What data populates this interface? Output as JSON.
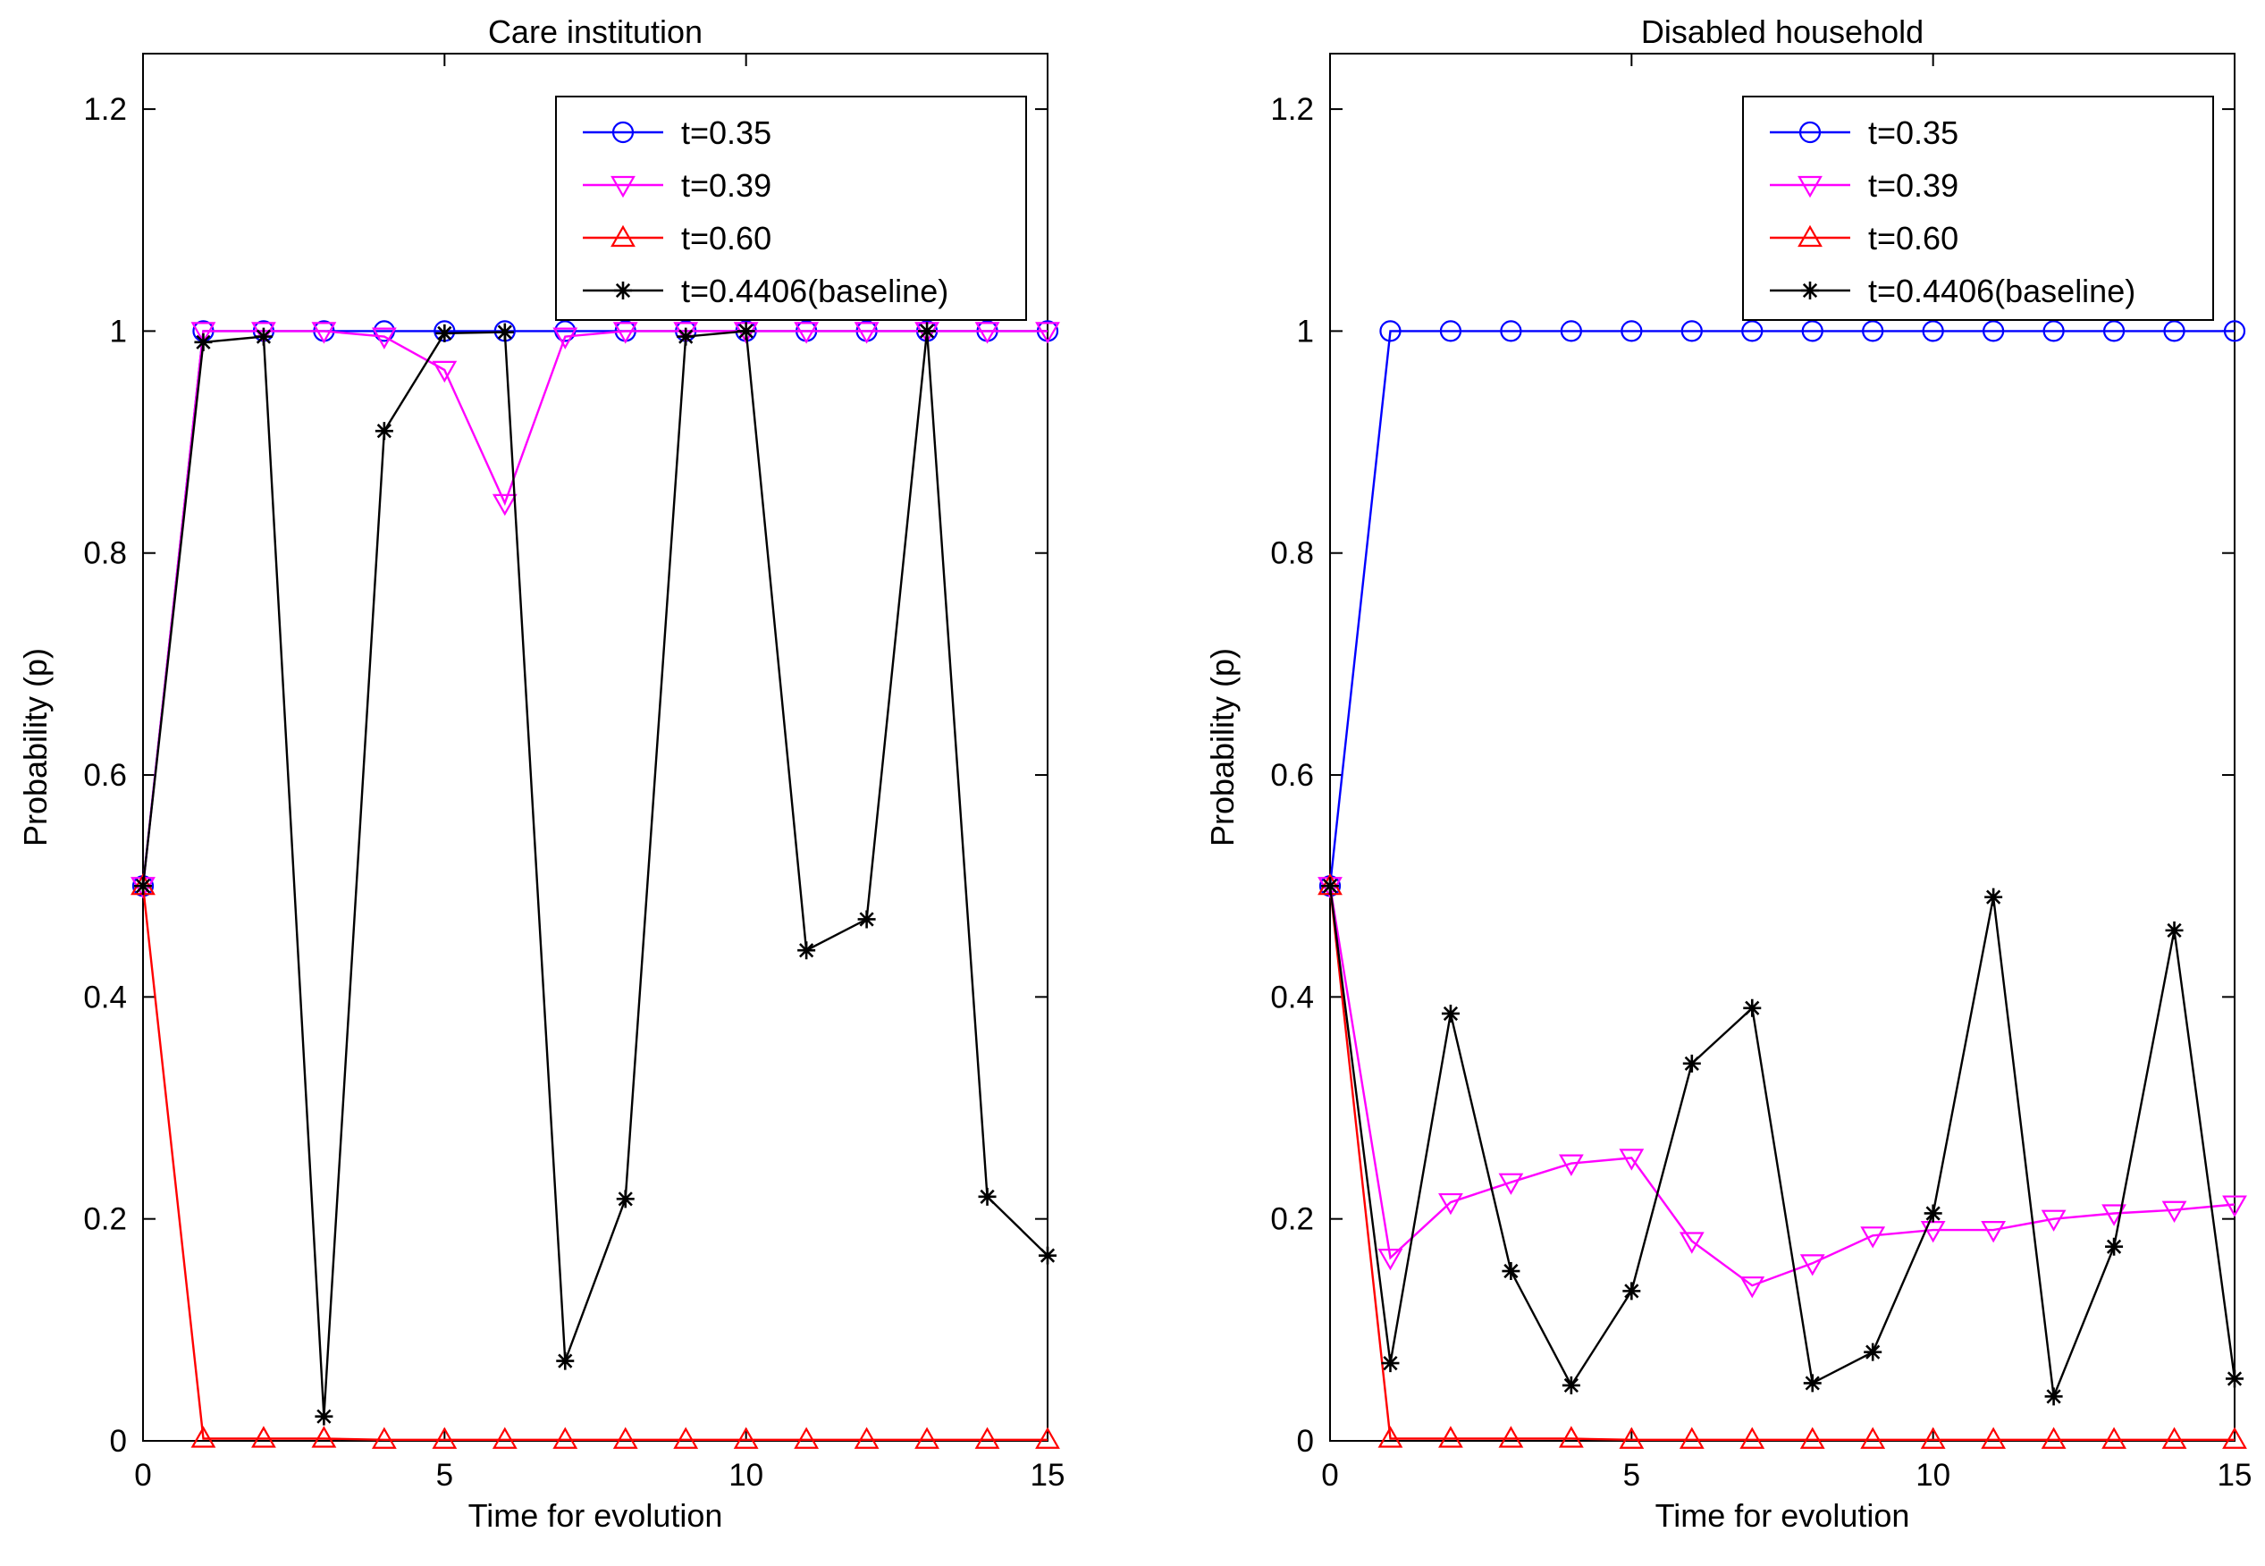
{
  "chart_data": [
    {
      "type": "line",
      "title": "Care institution",
      "xlabel": "Time for evolution",
      "ylabel": "Probability (p)",
      "xlim": [
        0,
        15
      ],
      "ylim": [
        0,
        1.25
      ],
      "xticks": [
        "0",
        "5",
        "10",
        "15"
      ],
      "yticks": [
        "0",
        "0.2",
        "0.4",
        "0.6",
        "0.8",
        "1",
        "1.2"
      ],
      "legend_position": "top-right",
      "x": [
        0,
        1,
        2,
        3,
        4,
        5,
        6,
        7,
        8,
        9,
        10,
        11,
        12,
        13,
        14,
        15
      ],
      "series": [
        {
          "name": "t=0.35",
          "color": "#0000ff",
          "marker": "circle",
          "values": [
            0.5,
            1,
            1,
            1,
            1,
            1,
            1,
            1,
            1,
            1,
            1,
            1,
            1,
            1,
            1,
            1
          ]
        },
        {
          "name": "t=0.39",
          "color": "#ff00ff",
          "marker": "triangle-down",
          "values": [
            0.5,
            1,
            1,
            1,
            0.995,
            0.965,
            0.845,
            0.995,
            1,
            1,
            1,
            1,
            1,
            1,
            1,
            1
          ]
        },
        {
          "name": "t=0.60",
          "color": "#ff0000",
          "marker": "triangle-up",
          "values": [
            0.5,
            0.002,
            0.002,
            0.002,
            0.001,
            0.001,
            0.001,
            0.001,
            0.001,
            0.001,
            0.001,
            0.001,
            0.001,
            0.001,
            0.001,
            0.001
          ]
        },
        {
          "name": "t=0.4406(baseline)",
          "color": "#000000",
          "marker": "star",
          "values": [
            0.5,
            0.99,
            0.995,
            0.022,
            0.91,
            0.998,
            0.999,
            0.072,
            0.218,
            0.995,
            1,
            0.442,
            0.47,
            1,
            0.22,
            0.167
          ]
        }
      ]
    },
    {
      "type": "line",
      "title": "Disabled household",
      "xlabel": "Time for evolution",
      "ylabel": "Probability (p)",
      "xlim": [
        0,
        15
      ],
      "ylim": [
        0,
        1.25
      ],
      "xticks": [
        "0",
        "5",
        "10",
        "15"
      ],
      "yticks": [
        "0",
        "0.2",
        "0.4",
        "0.6",
        "0.8",
        "1",
        "1.2"
      ],
      "legend_position": "top-right",
      "x": [
        0,
        1,
        2,
        3,
        4,
        5,
        6,
        7,
        8,
        9,
        10,
        11,
        12,
        13,
        14,
        15
      ],
      "series": [
        {
          "name": "t=0.35",
          "color": "#0000ff",
          "marker": "circle",
          "values": [
            0.5,
            1,
            1,
            1,
            1,
            1,
            1,
            1,
            1,
            1,
            1,
            1,
            1,
            1,
            1,
            1
          ]
        },
        {
          "name": "t=0.39",
          "color": "#ff00ff",
          "marker": "triangle-down",
          "values": [
            0.5,
            0.165,
            0.215,
            0.233,
            0.25,
            0.255,
            0.18,
            0.14,
            0.16,
            0.185,
            0.19,
            0.19,
            0.2,
            0.205,
            0.208,
            0.213
          ]
        },
        {
          "name": "t=0.60",
          "color": "#ff0000",
          "marker": "triangle-up",
          "values": [
            0.5,
            0.002,
            0.002,
            0.002,
            0.002,
            0.001,
            0.001,
            0.001,
            0.001,
            0.001,
            0.001,
            0.001,
            0.001,
            0.001,
            0.001,
            0.001
          ]
        },
        {
          "name": "t=0.4406(baseline)",
          "color": "#000000",
          "marker": "star",
          "values": [
            0.5,
            0.07,
            0.385,
            0.153,
            0.05,
            0.135,
            0.34,
            0.39,
            0.052,
            0.08,
            0.205,
            0.49,
            0.04,
            0.175,
            0.46,
            0.056
          ]
        }
      ]
    }
  ]
}
